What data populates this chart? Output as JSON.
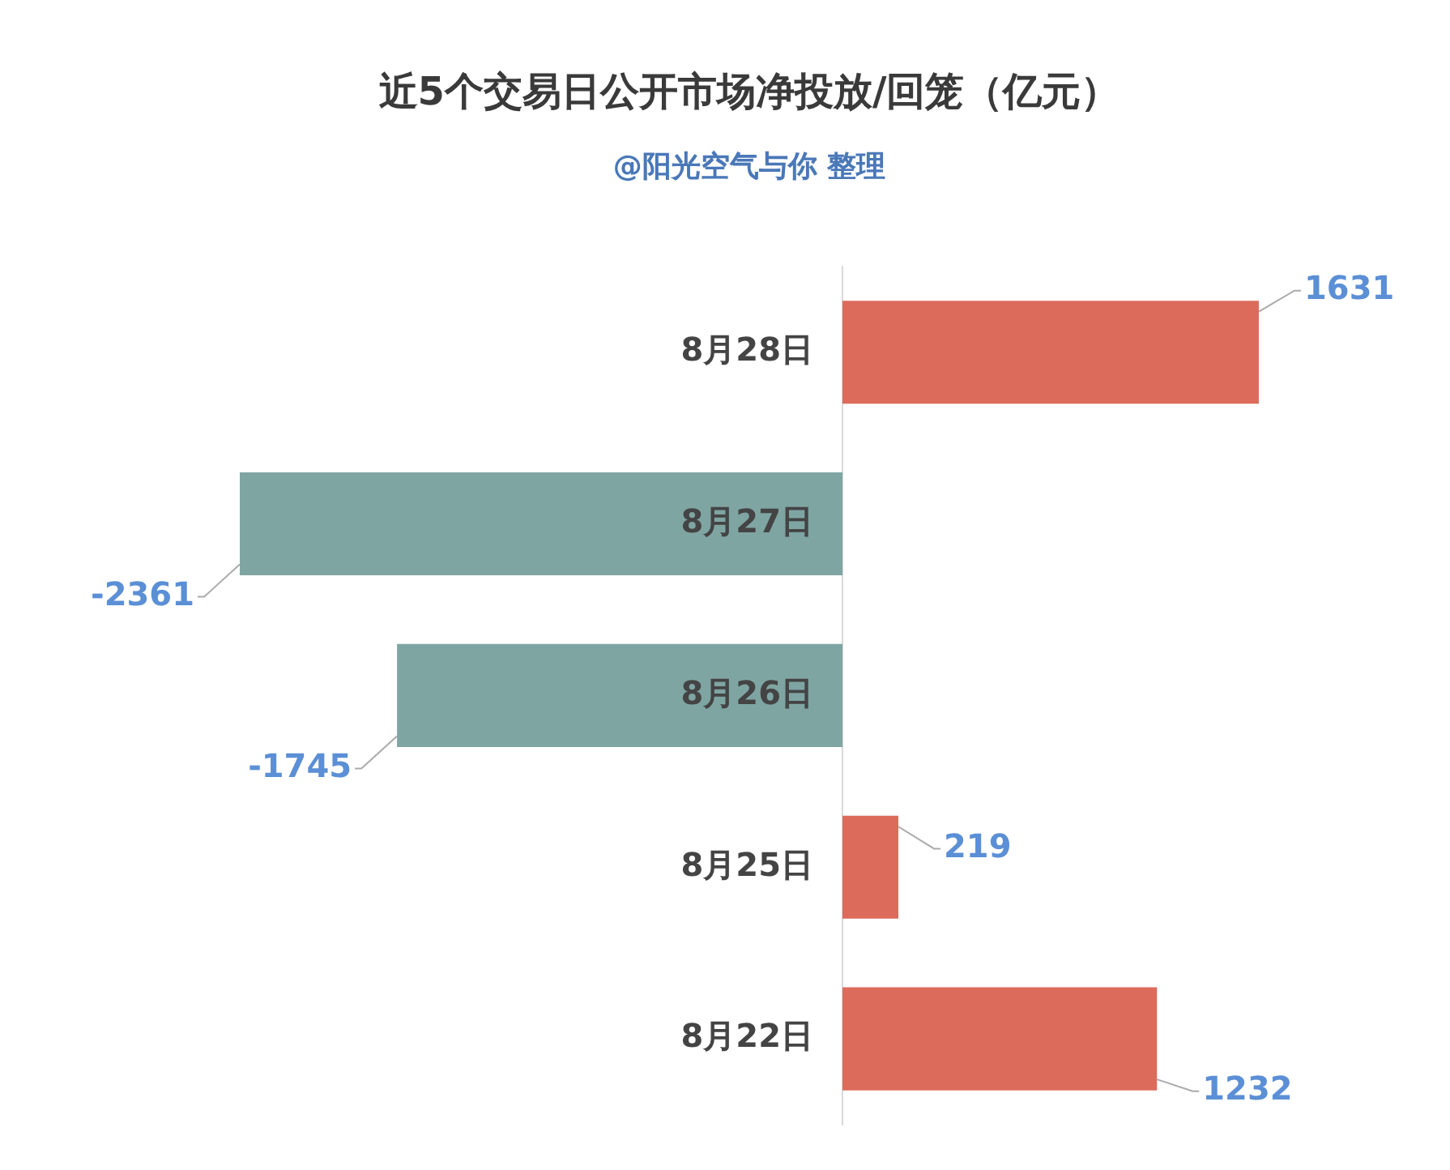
{
  "chart_data": {
    "type": "bar",
    "orientation": "horizontal",
    "title": "近5个交易日公开市场净投放/回笼（亿元）",
    "subtitle": "@阳光空气与你 整理",
    "categories": [
      "8月28日",
      "8月27日",
      "8月26日",
      "8月25日",
      "8月22日"
    ],
    "values": [
      1631,
      -2361,
      -1745,
      219,
      1232
    ],
    "colors": [
      "#dc6b5c",
      "#7fa5a3",
      "#7fa5a3",
      "#dc6b5c",
      "#dc6b5c"
    ],
    "data_labels": true,
    "legend": false
  }
}
